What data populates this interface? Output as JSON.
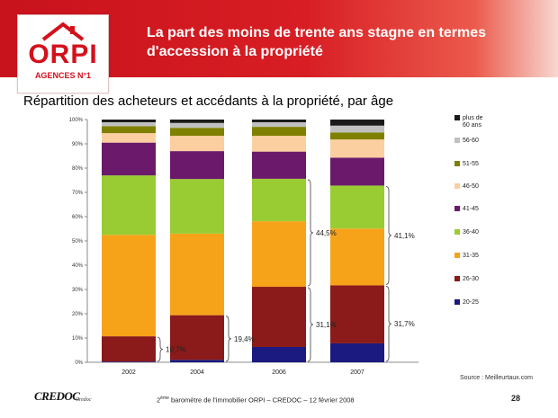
{
  "header": {
    "title": "La part des moins de trente ans stagne en termes d'accession à la propriété"
  },
  "logo": {
    "name": "ORPI",
    "tagline": "AGENCES N°1"
  },
  "chart_data": {
    "type": "bar",
    "stacked": true,
    "title": "Répartition des acheteurs et accédants à la propriété, par âge",
    "categories": [
      "2002",
      "2004",
      "2006",
      "2007"
    ],
    "y_ticks": [
      "0%",
      "10%",
      "20%",
      "30%",
      "40%",
      "50%",
      "60%",
      "70%",
      "80%",
      "90%",
      "100%"
    ],
    "ylim": [
      0,
      100
    ],
    "series": [
      {
        "name": "20-25",
        "color": "#1a1a80",
        "values": [
          0.3,
          1.0,
          6.3,
          7.8
        ]
      },
      {
        "name": "26-30",
        "color": "#8b1a1a",
        "values": [
          10.4,
          18.4,
          24.8,
          23.9
        ]
      },
      {
        "name": "31-35",
        "color": "#f7a31a",
        "values": [
          41.8,
          33.6,
          27.0,
          23.4
        ]
      },
      {
        "name": "36-40",
        "color": "#99cc33",
        "values": [
          24.5,
          22.5,
          17.5,
          17.7
        ]
      },
      {
        "name": "41-45",
        "color": "#6b1a6b",
        "values": [
          13.5,
          11.5,
          11.2,
          11.5
        ]
      },
      {
        "name": "46-50",
        "color": "#fbcfa0",
        "values": [
          3.9,
          6.3,
          6.5,
          7.5
        ]
      },
      {
        "name": "51-55",
        "color": "#808000",
        "values": [
          2.9,
          3.3,
          3.7,
          2.9
        ]
      },
      {
        "name": "56-60",
        "color": "#c0c0c0",
        "values": [
          1.6,
          2.0,
          1.9,
          2.8
        ]
      },
      {
        "name": "plus de 60 ans",
        "color": "#1a1a1a",
        "values": [
          1.1,
          1.4,
          1.1,
          2.5
        ]
      }
    ],
    "annotations": [
      {
        "label": "10,7%",
        "category": "2002",
        "range": [
          0,
          10.7
        ]
      },
      {
        "label": "19,4%",
        "category": "2004",
        "range": [
          0,
          19.4
        ]
      },
      {
        "label": "31,1%",
        "category": "2006",
        "range": [
          0,
          31.1
        ]
      },
      {
        "label": "44,5%",
        "category": "2006",
        "range": [
          31.1,
          75.6
        ]
      },
      {
        "label": "31,7%",
        "category": "2007",
        "range": [
          0,
          31.7
        ]
      },
      {
        "label": "41,1%",
        "category": "2007",
        "range": [
          31.7,
          72.8
        ]
      }
    ],
    "legend_position": "right"
  },
  "source": "Source : Meilleurtaux.com",
  "footer": {
    "ordinal": "2",
    "ordinal_suffix": "ème",
    "text": " baromètre de l'immobilier ORPI – CREDOC – 12 février 2008"
  },
  "page_number": "28",
  "credoc": {
    "name": "CREDOC",
    "subtitle": "Credoc"
  }
}
